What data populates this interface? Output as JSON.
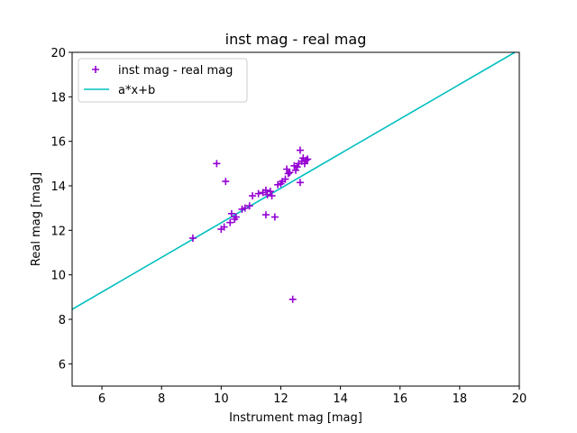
{
  "chart_data": {
    "type": "scatter",
    "title": "inst mag - real mag",
    "xlabel": "Instrument mag [mag]",
    "ylabel": "Real mag [mag]",
    "xlim": [
      5,
      20
    ],
    "ylim": [
      5,
      20
    ],
    "xticks": [
      6,
      8,
      10,
      12,
      14,
      16,
      18,
      20
    ],
    "yticks": [
      6,
      8,
      10,
      12,
      14,
      16,
      18,
      20
    ],
    "grid": false,
    "legend_position": "top-left",
    "series": [
      {
        "name": "inst mag - real mag",
        "kind": "scatter",
        "marker": "+",
        "color": "#9400d3",
        "points": [
          [
            9.05,
            11.65
          ],
          [
            9.85,
            15.0
          ],
          [
            10.0,
            12.05
          ],
          [
            10.1,
            12.15
          ],
          [
            10.15,
            14.2
          ],
          [
            10.3,
            12.35
          ],
          [
            10.35,
            12.75
          ],
          [
            10.45,
            12.5
          ],
          [
            10.5,
            12.6
          ],
          [
            10.7,
            12.95
          ],
          [
            10.8,
            13.0
          ],
          [
            10.95,
            13.1
          ],
          [
            11.05,
            13.55
          ],
          [
            11.25,
            13.65
          ],
          [
            11.4,
            13.7
          ],
          [
            11.5,
            12.7
          ],
          [
            11.5,
            13.8
          ],
          [
            11.55,
            13.6
          ],
          [
            11.65,
            13.75
          ],
          [
            11.7,
            13.55
          ],
          [
            11.8,
            12.6
          ],
          [
            11.9,
            14.05
          ],
          [
            12.0,
            14.1
          ],
          [
            12.05,
            14.2
          ],
          [
            12.15,
            14.3
          ],
          [
            12.2,
            14.75
          ],
          [
            12.25,
            14.55
          ],
          [
            12.3,
            14.6
          ],
          [
            12.4,
            8.9
          ],
          [
            12.45,
            14.9
          ],
          [
            12.5,
            14.7
          ],
          [
            12.55,
            14.85
          ],
          [
            12.6,
            15.0
          ],
          [
            12.65,
            15.6
          ],
          [
            12.65,
            14.15
          ],
          [
            12.7,
            15.1
          ],
          [
            12.75,
            15.25
          ],
          [
            12.8,
            15.0
          ],
          [
            12.85,
            15.15
          ],
          [
            12.9,
            15.2
          ]
        ]
      },
      {
        "name": "a*x+b",
        "kind": "line",
        "color": "#00bfbf",
        "points": [
          [
            5.0,
            8.45
          ],
          [
            19.85,
            20.0
          ]
        ]
      }
    ]
  }
}
